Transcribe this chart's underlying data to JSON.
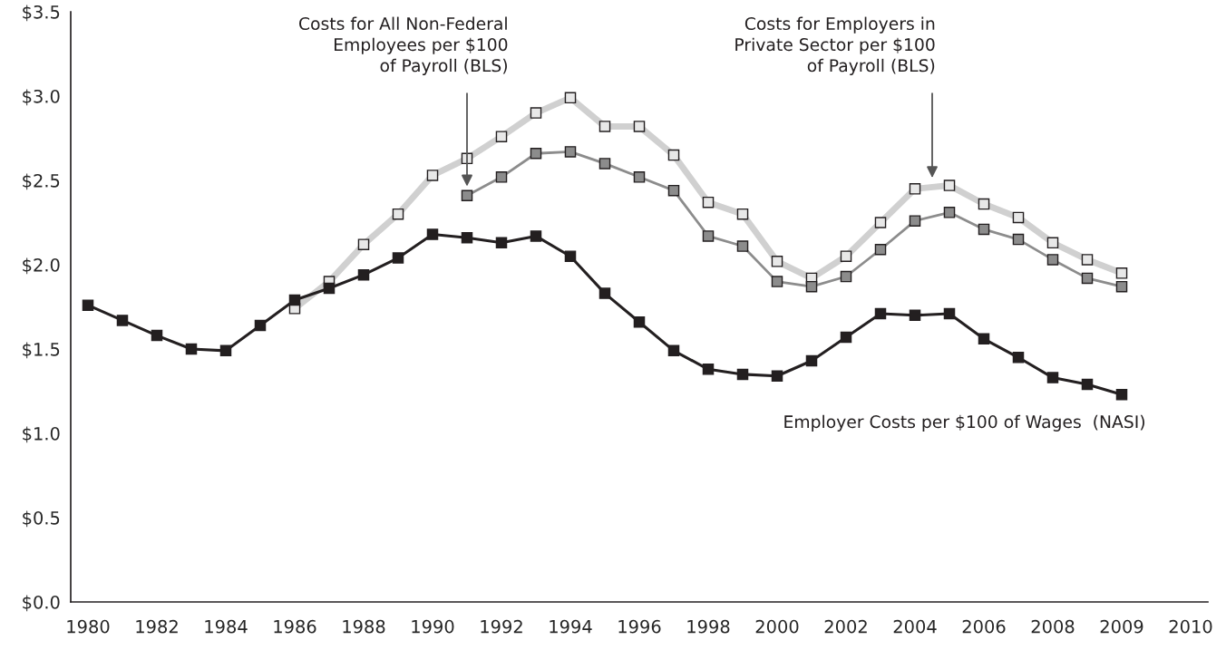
{
  "chart_data": {
    "type": "line",
    "categories": [
      "1980",
      null,
      "1982",
      null,
      "1984",
      null,
      "1986",
      null,
      "1988",
      null,
      "1990",
      null,
      "1992",
      null,
      "1994",
      null,
      "1996",
      null,
      "1998",
      null,
      "2000",
      null,
      "2002",
      null,
      "2004",
      null,
      "2006",
      null,
      "2008",
      null,
      "2009",
      null,
      "2010"
    ],
    "series": [
      {
        "color": "#d0d0d0",
        "values": [
          null,
          null,
          null,
          null,
          null,
          null,
          1.74,
          1.9,
          2.12,
          2.3,
          2.53,
          2.63,
          2.76,
          2.9,
          2.99,
          2.82,
          2.82,
          2.65,
          2.37,
          2.3,
          2.02,
          1.92,
          2.05,
          2.25,
          2.45,
          2.47,
          2.36,
          2.28,
          2.13,
          2.03,
          1.95,
          null,
          null
        ]
      },
      {
        "color": "#8c8c8c",
        "values": [
          null,
          null,
          null,
          null,
          null,
          null,
          null,
          null,
          null,
          null,
          null,
          2.41,
          2.52,
          2.66,
          2.67,
          2.6,
          2.52,
          2.44,
          2.17,
          2.11,
          1.9,
          1.87,
          1.93,
          2.09,
          2.26,
          2.31,
          2.21,
          2.15,
          2.03,
          1.92,
          1.87,
          null,
          null
        ]
      },
      {
        "color": "#231f20",
        "values": [
          1.76,
          1.67,
          1.58,
          1.5,
          1.49,
          1.64,
          1.79,
          1.86,
          1.94,
          2.04,
          2.18,
          2.16,
          2.13,
          2.17,
          2.05,
          1.83,
          1.66,
          1.49,
          1.38,
          1.35,
          1.34,
          1.43,
          1.57,
          1.71,
          1.7,
          1.71,
          1.56,
          1.45,
          1.33,
          1.29,
          1.23,
          null,
          null
        ]
      }
    ],
    "ylim": [
      0,
      3.5
    ],
    "yticks": [
      {
        "value": 0,
        "label": "$0.0"
      },
      {
        "value": 0.5,
        "label": "$0.5"
      },
      {
        "value": 1.0,
        "label": "$1.0"
      },
      {
        "value": 1.5,
        "label": "$1.5"
      },
      {
        "value": 2.0,
        "label": "$2.0"
      },
      {
        "value": 2.5,
        "label": "$2.5"
      },
      {
        "value": 3.0,
        "label": "$3.0"
      },
      {
        "value": 3.5,
        "label": "$3.5"
      }
    ],
    "marker": "square",
    "grid": false,
    "legend": false,
    "annotations": [
      "Costs for All Non-Federal\nEmployees per $100\nof Payroll (BLS)",
      "Costs for Employers in\nPrivate Sector per $100\nof Payroll (BLS)",
      "Employer Costs per $100 of Wages  (NASI)"
    ]
  }
}
